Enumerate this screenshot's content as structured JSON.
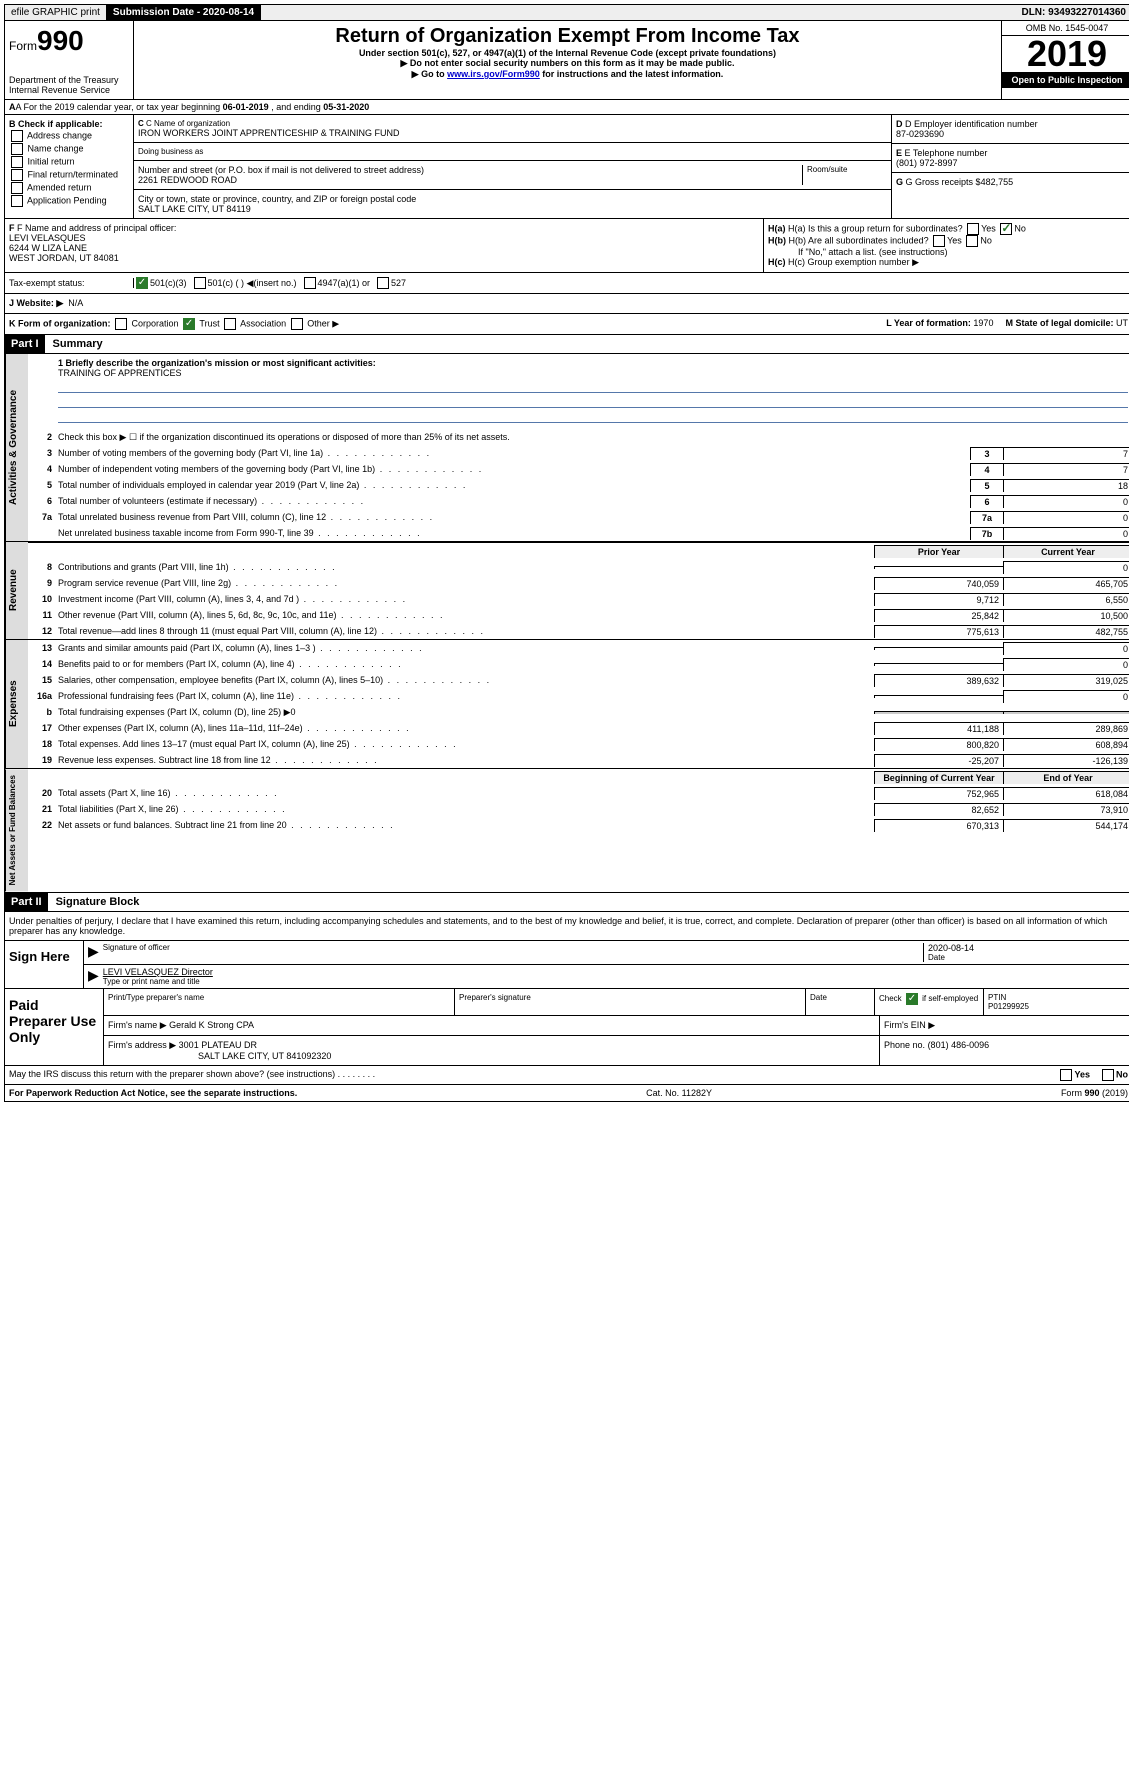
{
  "topbar": {
    "efile": "efile GRAPHIC print",
    "submission_label": "Submission Date - 2020-08-14",
    "dln": "DLN: 93493227014360"
  },
  "header": {
    "form_prefix": "Form",
    "form_number": "990",
    "dept": "Department of the Treasury\nInternal Revenue Service",
    "title": "Return of Organization Exempt From Income Tax",
    "sub1": "Under section 501(c), 527, or 4947(a)(1) of the Internal Revenue Code (except private foundations)",
    "sub2": "▶ Do not enter social security numbers on this form as it may be made public.",
    "sub3_pre": "▶ Go to ",
    "sub3_link": "www.irs.gov/Form990",
    "sub3_post": " for instructions and the latest information.",
    "omb": "OMB No. 1545-0047",
    "year": "2019",
    "open": "Open to Public Inspection"
  },
  "row_a": {
    "text_pre": "A For the 2019 calendar year, or tax year beginning ",
    "begin": "06-01-2019",
    "mid": " , and ending ",
    "end": "05-31-2020"
  },
  "section_b": {
    "check_label": "B Check if applicable:",
    "options": [
      "Address change",
      "Name change",
      "Initial return",
      "Final return/terminated",
      "Amended return",
      "Application Pending"
    ],
    "c_label": "C Name of organization",
    "c_name": "IRON WORKERS JOINT APPRENTICESHIP & TRAINING FUND",
    "dba_label": "Doing business as",
    "addr_label": "Number and street (or P.O. box if mail is not delivered to street address)",
    "addr": "2261 REDWOOD ROAD",
    "room_label": "Room/suite",
    "city_label": "City or town, state or province, country, and ZIP or foreign postal code",
    "city": "SALT LAKE CITY, UT  84119",
    "d_label": "D Employer identification number",
    "d_ein": "87-0293690",
    "e_label": "E Telephone number",
    "e_phone": "(801) 972-8997",
    "g_label": "G Gross receipts $",
    "g_amount": "482,755"
  },
  "section_fh": {
    "f_label": "F Name and address of principal officer:",
    "f_name": "LEVI VELASQUES",
    "f_addr1": "6244 W LIZA LANE",
    "f_addr2": "WEST JORDAN, UT  84081",
    "ha_label": "H(a) Is this a group return for subordinates?",
    "ha_yes": "Yes",
    "ha_no": "No",
    "hb_label": "H(b) Are all subordinates included?",
    "hb_yes": "Yes",
    "hb_no": "No",
    "hb_note": "If \"No,\" attach a list. (see instructions)",
    "hc_label": "H(c) Group exemption number ▶"
  },
  "tax_status": {
    "label": "Tax-exempt status:",
    "opt1": "501(c)(3)",
    "opt2": "501(c) (   ) ◀(insert no.)",
    "opt3": "4947(a)(1) or",
    "opt4": "527"
  },
  "website": {
    "label": "J    Website: ▶",
    "value": "N/A"
  },
  "k_row": {
    "k_label": "K Form of organization:",
    "k_opts": [
      "Corporation",
      "Trust",
      "Association",
      "Other ▶"
    ],
    "l_label": "L Year of formation:",
    "l_val": "1970",
    "m_label": "M State of legal domicile:",
    "m_val": "UT"
  },
  "part1": {
    "header": "Part I",
    "title": "Summary"
  },
  "mission": {
    "line1_label": "1 Briefly describe the organization's mission or most significant activities:",
    "line1_val": "TRAINING OF APPRENTICES"
  },
  "governance": {
    "vert": "Activities & Governance",
    "lines": [
      {
        "n": "2",
        "t": "Check this box ▶ ☐  if the organization discontinued its operations or disposed of more than 25% of its net assets."
      },
      {
        "n": "3",
        "t": "Number of voting members of the governing body (Part VI, line 1a)",
        "cn": "3",
        "v": "7"
      },
      {
        "n": "4",
        "t": "Number of independent voting members of the governing body (Part VI, line 1b)",
        "cn": "4",
        "v": "7"
      },
      {
        "n": "5",
        "t": "Total number of individuals employed in calendar year 2019 (Part V, line 2a)",
        "cn": "5",
        "v": "18"
      },
      {
        "n": "6",
        "t": "Total number of volunteers (estimate if necessary)",
        "cn": "6",
        "v": "0"
      },
      {
        "n": "7a",
        "t": "Total unrelated business revenue from Part VIII, column (C), line 12",
        "cn": "7a",
        "v": "0"
      },
      {
        "n": "",
        "t": "Net unrelated business taxable income from Form 990-T, line 39",
        "cn": "7b",
        "v": "0"
      }
    ]
  },
  "revenue": {
    "vert": "Revenue",
    "header_prior": "Prior Year",
    "header_curr": "Current Year",
    "lines": [
      {
        "n": "8",
        "t": "Contributions and grants (Part VIII, line 1h)",
        "p": "",
        "c": "0"
      },
      {
        "n": "9",
        "t": "Program service revenue (Part VIII, line 2g)",
        "p": "740,059",
        "c": "465,705"
      },
      {
        "n": "10",
        "t": "Investment income (Part VIII, column (A), lines 3, 4, and 7d )",
        "p": "9,712",
        "c": "6,550"
      },
      {
        "n": "11",
        "t": "Other revenue (Part VIII, column (A), lines 5, 6d, 8c, 9c, 10c, and 11e)",
        "p": "25,842",
        "c": "10,500"
      },
      {
        "n": "12",
        "t": "Total revenue—add lines 8 through 11 (must equal Part VIII, column (A), line 12)",
        "p": "775,613",
        "c": "482,755"
      }
    ]
  },
  "expenses": {
    "vert": "Expenses",
    "lines": [
      {
        "n": "13",
        "t": "Grants and similar amounts paid (Part IX, column (A), lines 1–3 )",
        "p": "",
        "c": "0"
      },
      {
        "n": "14",
        "t": "Benefits paid to or for members (Part IX, column (A), line 4)",
        "p": "",
        "c": "0"
      },
      {
        "n": "15",
        "t": "Salaries, other compensation, employee benefits (Part IX, column (A), lines 5–10)",
        "p": "389,632",
        "c": "319,025"
      },
      {
        "n": "16a",
        "t": "Professional fundraising fees (Part IX, column (A), line 11e)",
        "p": "",
        "c": "0"
      },
      {
        "n": "b",
        "t": "Total fundraising expenses (Part IX, column (D), line 25) ▶0",
        "p": null,
        "c": null
      },
      {
        "n": "17",
        "t": "Other expenses (Part IX, column (A), lines 11a–11d, 11f–24e)",
        "p": "411,188",
        "c": "289,869"
      },
      {
        "n": "18",
        "t": "Total expenses. Add lines 13–17 (must equal Part IX, column (A), line 25)",
        "p": "800,820",
        "c": "608,894"
      },
      {
        "n": "19",
        "t": "Revenue less expenses. Subtract line 18 from line 12",
        "p": "-25,207",
        "c": "-126,139"
      }
    ]
  },
  "netassets": {
    "vert": "Net Assets or Fund Balances",
    "header_prior": "Beginning of Current Year",
    "header_curr": "End of Year",
    "lines": [
      {
        "n": "20",
        "t": "Total assets (Part X, line 16)",
        "p": "752,965",
        "c": "618,084"
      },
      {
        "n": "21",
        "t": "Total liabilities (Part X, line 26)",
        "p": "82,652",
        "c": "73,910"
      },
      {
        "n": "22",
        "t": "Net assets or fund balances. Subtract line 21 from line 20",
        "p": "670,313",
        "c": "544,174"
      }
    ]
  },
  "part2": {
    "header": "Part II",
    "title": "Signature Block",
    "declaration": "Under penalties of perjury, I declare that I have examined this return, including accompanying schedules and statements, and to the best of my knowledge and belief, it is true, correct, and complete. Declaration of preparer (other than officer) is based on all information of which preparer has any knowledge."
  },
  "sign": {
    "label": "Sign Here",
    "sig_officer": "Signature of officer",
    "date_label": "Date",
    "date": "2020-08-14",
    "name": "LEVI VELASQUEZ  Director",
    "name_label": "Type or print name and title"
  },
  "paid": {
    "label": "Paid Preparer Use Only",
    "h_name": "Print/Type preparer's name",
    "h_sig": "Preparer's signature",
    "h_date": "Date",
    "h_check": "Check",
    "h_check_sub": "if self-employed",
    "h_ptin": "PTIN",
    "ptin": "P01299925",
    "firm_name_label": "Firm's name    ▶",
    "firm_name": "Gerald K Strong CPA",
    "firm_ein_label": "Firm's EIN ▶",
    "firm_addr_label": "Firm's address ▶",
    "firm_addr1": "3001 PLATEAU DR",
    "firm_addr2": "SALT LAKE CITY, UT  841092320",
    "phone_label": "Phone no.",
    "phone": "(801) 486-0096"
  },
  "discuss": {
    "text": "May the IRS discuss this return with the preparer shown above? (see instructions)",
    "yes": "Yes",
    "no": "No"
  },
  "footer": {
    "left": "For Paperwork Reduction Act Notice, see the separate instructions.",
    "mid": "Cat. No. 11282Y",
    "right": "Form 990 (2019)"
  }
}
